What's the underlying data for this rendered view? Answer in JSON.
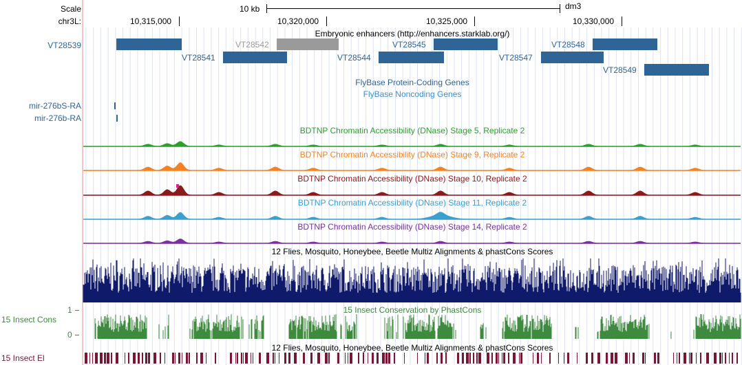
{
  "ruler": {
    "scale_label": "Scale",
    "chrom_label": "chr3L:",
    "scale_bar_text": "10 kb",
    "assembly": "dm3",
    "positions": [
      "10,315,000",
      "10,320,000",
      "10,325,000",
      "10,330,000"
    ]
  },
  "tracks": {
    "enhancers": {
      "title": "Embryonic enhancers (http://enhancers.starklab.org/)",
      "items": [
        "VT28539",
        "VT28541",
        "VT28542",
        "VT28544",
        "VT28545",
        "VT28547",
        "VT28548",
        "VT28549"
      ],
      "colors": {
        "item": "#2f6496",
        "grayed": "#9a9a9a"
      }
    },
    "genes": {
      "coding_title": "FlyBase Protein-Coding Genes",
      "noncoding_title": "FlyBase Noncoding Genes",
      "noncoding_items": [
        "mir-276bS-RA",
        "mir-276b-RA"
      ],
      "color": "#2f6496"
    },
    "dnase": [
      {
        "title": "BDTNP Chromatin Accessibility (DNase) Stage 5, Replicate 2",
        "color": "#2ca02c"
      },
      {
        "title": "BDTNP Chromatin Accessibility (DNase) Stage 9, Replicate 2",
        "color": "#f58220"
      },
      {
        "title": "BDTNP Chromatin Accessibility (DNase) Stage 10, Replicate 2",
        "color": "#8b1a1a"
      },
      {
        "title": "BDTNP Chromatin Accessibility (DNase) Stage 11, Replicate 2",
        "color": "#3b9fcf"
      },
      {
        "title": "BDTNP Chromatin Accessibility (DNase) Stage 14, Replicate 2",
        "color": "#7b2fa0"
      }
    ],
    "multiz": {
      "title": "12 Flies, Mosquito, Honeybee, Beetle Multiz Alignments & phastCons Scores",
      "color": "#101a6b"
    },
    "phastcons": {
      "title": "15 Insect Conservation by PhastCons",
      "side_label": "15 Insect Cons",
      "max_label": "1",
      "min_label": "0",
      "color": "#3e8a3e"
    },
    "elements": {
      "title": "12 Flies, Mosquito, Honeybee, Beetle Multiz Alignments & phastCons Scores",
      "side_label": "15 Insect El",
      "color": "#7a1633"
    }
  }
}
